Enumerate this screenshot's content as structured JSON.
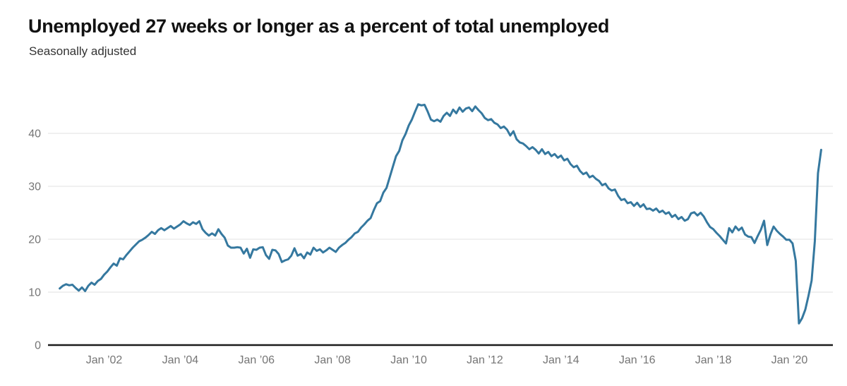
{
  "header": {
    "title": "Unemployed 27 weeks or longer as a percent of total unemployed",
    "subtitle": "Seasonally adjusted"
  },
  "chart_data": {
    "type": "line",
    "title": "Unemployed 27 weeks or longer as a percent of total unemployed",
    "subtitle": "Seasonally adjusted",
    "unit": "percent of total unemployed",
    "frequency": "monthly",
    "start_month": "2000-11",
    "end_month": "2020-11",
    "x_tick_years": [
      2002,
      2004,
      2006,
      2008,
      2010,
      2012,
      2014,
      2016,
      2018,
      2020
    ],
    "x_tick_labels": [
      "Jan ’02",
      "Jan ’04",
      "Jan ’06",
      "Jan ’08",
      "Jan ’10",
      "Jan ’12",
      "Jan ’14",
      "Jan ’16",
      "Jan ’18",
      "Jan ’20"
    ],
    "y_ticks": [
      0,
      10,
      20,
      30,
      40
    ],
    "ylim": [
      0,
      46.5
    ],
    "grid": "horizontal-only",
    "legend": "none",
    "line_color": "#35789f",
    "axis_color": "#1c1c1c",
    "grid_color": "#e2e2e2",
    "tick_label_color": "#757575",
    "series": [
      {
        "name": "Share of unemployed 27 weeks or longer (%)",
        "values": [
          10.7,
          11.2,
          11.5,
          11.3,
          11.4,
          10.8,
          10.3,
          10.9,
          10.2,
          11.2,
          11.8,
          11.4,
          12.1,
          12.5,
          13.3,
          13.9,
          14.7,
          15.4,
          15.0,
          16.4,
          16.2,
          17.0,
          17.7,
          18.4,
          19.0,
          19.6,
          19.9,
          20.3,
          20.8,
          21.4,
          21.0,
          21.7,
          22.1,
          21.7,
          22.1,
          22.5,
          22.0,
          22.4,
          22.8,
          23.4,
          23.0,
          22.7,
          23.2,
          22.9,
          23.4,
          21.9,
          21.2,
          20.7,
          21.1,
          20.7,
          21.9,
          21.0,
          20.3,
          18.8,
          18.4,
          18.4,
          18.5,
          18.4,
          17.3,
          18.2,
          16.5,
          18.1,
          18.0,
          18.4,
          18.5,
          17.0,
          16.3,
          18.0,
          17.9,
          17.2,
          15.7,
          16.0,
          16.2,
          16.9,
          18.3,
          16.9,
          17.2,
          16.4,
          17.5,
          17.1,
          18.4,
          17.8,
          18.1,
          17.5,
          17.9,
          18.4,
          18.0,
          17.6,
          18.4,
          18.9,
          19.3,
          19.9,
          20.4,
          21.1,
          21.4,
          22.2,
          22.8,
          23.5,
          24.0,
          25.5,
          26.8,
          27.2,
          28.8,
          29.7,
          31.7,
          33.7,
          35.7,
          36.7,
          38.7,
          39.9,
          41.5,
          42.6,
          44.1,
          45.5,
          45.3,
          45.4,
          44.1,
          42.6,
          42.3,
          42.6,
          42.2,
          43.3,
          43.9,
          43.3,
          44.5,
          43.8,
          44.9,
          44.1,
          44.7,
          44.9,
          44.2,
          45.1,
          44.4,
          43.8,
          42.9,
          42.5,
          42.7,
          42.0,
          41.7,
          41.0,
          41.3,
          40.7,
          39.6,
          40.4,
          38.9,
          38.3,
          38.1,
          37.6,
          37.0,
          37.4,
          36.9,
          36.2,
          37.0,
          36.1,
          36.5,
          35.7,
          36.1,
          35.4,
          35.8,
          34.9,
          35.2,
          34.2,
          33.6,
          33.9,
          32.9,
          32.3,
          32.6,
          31.7,
          32.0,
          31.4,
          31.0,
          30.2,
          30.5,
          29.6,
          29.2,
          29.4,
          28.2,
          27.4,
          27.6,
          26.8,
          27.0,
          26.3,
          26.9,
          26.1,
          26.6,
          25.7,
          25.8,
          25.4,
          25.8,
          25.1,
          25.4,
          24.8,
          25.1,
          24.2,
          24.6,
          23.8,
          24.2,
          23.5,
          23.8,
          24.9,
          25.1,
          24.5,
          25.0,
          24.3,
          23.2,
          22.3,
          21.9,
          21.2,
          20.6,
          19.9,
          19.2,
          22.1,
          21.3,
          22.4,
          21.7,
          22.2,
          20.9,
          20.5,
          20.4,
          19.3,
          20.6,
          21.8,
          23.5,
          18.9,
          20.9,
          22.4,
          21.6,
          21.0,
          20.5,
          19.9,
          19.9,
          19.2,
          15.9,
          4.1,
          5.1,
          6.7,
          9.3,
          12.2,
          19.6,
          32.5,
          36.9
        ]
      }
    ]
  }
}
